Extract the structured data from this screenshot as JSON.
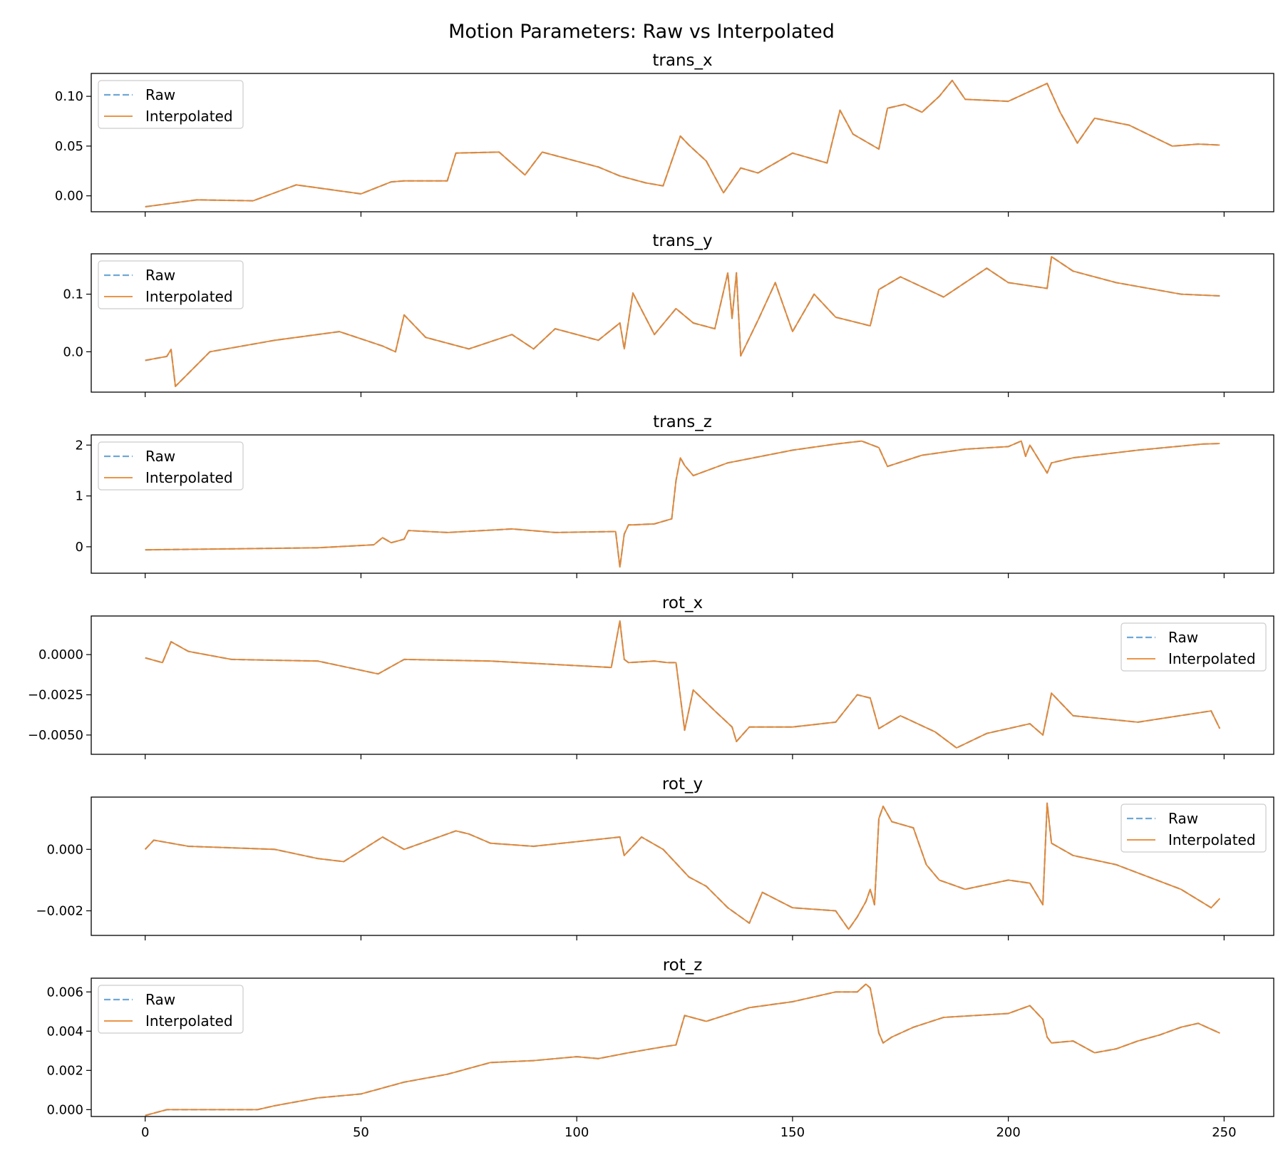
{
  "chart_data": {
    "type": "line",
    "title": "Motion Parameters: Raw vs Interpolated",
    "xlim": [
      -12.5,
      261.5
    ],
    "x_ticks": [
      0,
      50,
      100,
      150,
      200,
      250
    ],
    "x_tick_labels": [
      "0",
      "50",
      "100",
      "150",
      "200",
      "250"
    ],
    "x_tick_labels_on_last_panel_only": true,
    "legend_entries": [
      "Raw",
      "Interpolated"
    ],
    "colors": {
      "Raw": "#6fa8d6",
      "Interpolated": "#e8862f"
    },
    "raw_line_style": "dashed",
    "grid": false,
    "panels": [
      {
        "title": "trans_x",
        "ylim": [
          -0.016,
          0.123
        ],
        "y_ticks": [
          0,
          0.05,
          0.1
        ],
        "y_tick_labels": [
          "0.00",
          "0.05",
          "0.10"
        ],
        "legend_position": "upper-left",
        "x": [
          0,
          12,
          25,
          35,
          50,
          57,
          60,
          70,
          72,
          82,
          88,
          92,
          105,
          110,
          116,
          120,
          124,
          126,
          130,
          134,
          138,
          142,
          150,
          158,
          161,
          164,
          170,
          172,
          176,
          180,
          184,
          187,
          190,
          200,
          209,
          212,
          216,
          220,
          228,
          238,
          244,
          249
        ],
        "series": [
          {
            "name": "Raw",
            "values": [
              -0.011,
              -0.004,
              -0.005,
              0.011,
              0.002,
              0.014,
              0.015,
              0.015,
              0.043,
              0.044,
              0.021,
              0.044,
              0.029,
              0.02,
              0.013,
              0.01,
              0.06,
              0.051,
              0.035,
              0.003,
              0.028,
              0.023,
              0.043,
              0.033,
              0.086,
              0.062,
              0.047,
              0.088,
              0.092,
              0.084,
              0.1,
              0.116,
              0.097,
              0.095,
              0.113,
              0.084,
              0.053,
              0.078,
              0.071,
              0.05,
              0.052,
              0.051
            ]
          },
          {
            "name": "Interpolated",
            "values": [
              -0.011,
              -0.004,
              -0.005,
              0.011,
              0.002,
              0.014,
              0.015,
              0.015,
              0.043,
              0.044,
              0.021,
              0.044,
              0.029,
              0.02,
              0.013,
              0.01,
              0.06,
              0.051,
              0.035,
              0.003,
              0.028,
              0.023,
              0.043,
              0.033,
              0.086,
              0.062,
              0.047,
              0.088,
              0.092,
              0.084,
              0.1,
              0.116,
              0.097,
              0.095,
              0.113,
              0.084,
              0.053,
              0.078,
              0.071,
              0.05,
              0.052,
              0.051
            ]
          }
        ]
      },
      {
        "title": "trans_y",
        "ylim": [
          -0.07,
          0.17
        ],
        "y_ticks": [
          0,
          0.1
        ],
        "y_tick_labels": [
          "0.0",
          "0.1"
        ],
        "legend_position": "upper-left",
        "x": [
          0,
          5,
          6,
          7,
          15,
          30,
          45,
          55,
          58,
          60,
          65,
          75,
          85,
          90,
          95,
          105,
          110,
          111,
          113,
          118,
          123,
          127,
          132,
          135,
          136,
          137,
          138,
          142,
          146,
          150,
          155,
          160,
          168,
          170,
          175,
          185,
          195,
          200,
          209,
          210,
          215,
          225,
          240,
          249
        ],
        "series": [
          {
            "name": "Raw",
            "values": [
              -0.015,
              -0.008,
              0.004,
              -0.06,
              0.0,
              0.02,
              0.035,
              0.01,
              0.0,
              0.064,
              0.025,
              0.005,
              0.03,
              0.005,
              0.04,
              0.02,
              0.05,
              0.005,
              0.102,
              0.03,
              0.075,
              0.05,
              0.04,
              0.137,
              0.058,
              0.137,
              -0.007,
              0.055,
              0.12,
              0.035,
              0.1,
              0.06,
              0.045,
              0.108,
              0.13,
              0.095,
              0.145,
              0.12,
              0.11,
              0.165,
              0.14,
              0.12,
              0.1,
              0.097
            ]
          },
          {
            "name": "Interpolated",
            "values": [
              -0.015,
              -0.008,
              0.004,
              -0.06,
              0.0,
              0.02,
              0.035,
              0.01,
              0.0,
              0.064,
              0.025,
              0.005,
              0.03,
              0.005,
              0.04,
              0.02,
              0.05,
              0.005,
              0.102,
              0.03,
              0.075,
              0.05,
              0.04,
              0.137,
              0.058,
              0.137,
              -0.007,
              0.055,
              0.12,
              0.035,
              0.1,
              0.06,
              0.045,
              0.108,
              0.13,
              0.095,
              0.145,
              0.12,
              0.11,
              0.165,
              0.14,
              0.12,
              0.1,
              0.097
            ]
          }
        ]
      },
      {
        "title": "trans_z",
        "ylim": [
          -0.52,
          2.2
        ],
        "y_ticks": [
          0,
          1,
          2
        ],
        "y_tick_labels": [
          "0",
          "1",
          "2"
        ],
        "legend_position": "upper-left",
        "x": [
          0,
          20,
          40,
          53,
          55,
          57,
          60,
          61,
          70,
          85,
          95,
          109,
          110,
          111,
          112,
          113,
          118,
          122,
          123,
          124,
          125,
          127,
          135,
          150,
          160,
          166,
          170,
          172,
          180,
          190,
          200,
          203,
          204,
          205,
          209,
          210,
          215,
          230,
          245,
          249
        ],
        "series": [
          {
            "name": "Raw",
            "values": [
              -0.06,
              -0.04,
              -0.02,
              0.04,
              0.18,
              0.08,
              0.15,
              0.32,
              0.28,
              0.35,
              0.28,
              0.3,
              -0.4,
              0.25,
              0.43,
              0.43,
              0.45,
              0.55,
              1.3,
              1.75,
              1.6,
              1.4,
              1.65,
              1.9,
              2.02,
              2.08,
              1.95,
              1.58,
              1.8,
              1.92,
              1.97,
              2.08,
              1.78,
              2.0,
              1.45,
              1.65,
              1.75,
              1.9,
              2.02,
              2.03
            ]
          },
          {
            "name": "Interpolated",
            "values": [
              -0.06,
              -0.04,
              -0.02,
              0.04,
              0.18,
              0.08,
              0.15,
              0.32,
              0.28,
              0.35,
              0.28,
              0.3,
              -0.4,
              0.25,
              0.43,
              0.43,
              0.45,
              0.55,
              1.3,
              1.75,
              1.6,
              1.4,
              1.65,
              1.9,
              2.02,
              2.08,
              1.95,
              1.58,
              1.8,
              1.92,
              1.97,
              2.08,
              1.78,
              2.0,
              1.45,
              1.65,
              1.75,
              1.9,
              2.02,
              2.03
            ]
          }
        ]
      },
      {
        "title": "rot_x",
        "ylim": [
          -0.0062,
          0.0024
        ],
        "y_ticks": [
          -0.005,
          -0.0025,
          0
        ],
        "y_tick_labels": [
          "−0.0050",
          "−0.0025",
          "0.0000"
        ],
        "legend_position": "upper-right",
        "x": [
          0,
          4,
          6,
          10,
          20,
          40,
          54,
          60,
          80,
          108,
          110,
          111,
          112,
          118,
          121,
          123,
          125,
          127,
          132,
          136,
          137,
          140,
          150,
          160,
          165,
          168,
          170,
          175,
          183,
          188,
          195,
          205,
          208,
          210,
          215,
          230,
          247,
          249
        ],
        "series": [
          {
            "name": "Raw",
            "values": [
              -0.0002,
              -0.0005,
              0.0008,
              0.0002,
              -0.0003,
              -0.0004,
              -0.0012,
              -0.0003,
              -0.0004,
              -0.0008,
              0.0021,
              -0.0003,
              -0.0005,
              -0.0004,
              -0.0005,
              -0.0005,
              -0.0047,
              -0.0022,
              -0.0035,
              -0.0045,
              -0.0054,
              -0.0045,
              -0.0045,
              -0.0042,
              -0.0025,
              -0.0027,
              -0.0046,
              -0.0038,
              -0.0048,
              -0.0058,
              -0.0049,
              -0.0043,
              -0.005,
              -0.0024,
              -0.0038,
              -0.0042,
              -0.0035,
              -0.0046
            ]
          },
          {
            "name": "Interpolated",
            "values": [
              -0.0002,
              -0.0005,
              0.0008,
              0.0002,
              -0.0003,
              -0.0004,
              -0.0012,
              -0.0003,
              -0.0004,
              -0.0008,
              0.0021,
              -0.0003,
              -0.0005,
              -0.0004,
              -0.0005,
              -0.0005,
              -0.0047,
              -0.0022,
              -0.0035,
              -0.0045,
              -0.0054,
              -0.0045,
              -0.0045,
              -0.0042,
              -0.0025,
              -0.0027,
              -0.0046,
              -0.0038,
              -0.0048,
              -0.0058,
              -0.0049,
              -0.0043,
              -0.005,
              -0.0024,
              -0.0038,
              -0.0042,
              -0.0035,
              -0.0046
            ]
          }
        ]
      },
      {
        "title": "rot_y",
        "ylim": [
          -0.0028,
          0.0017
        ],
        "y_ticks": [
          -0.002,
          0
        ],
        "y_tick_labels": [
          "−0.002",
          "0.000"
        ],
        "legend_position": "upper-right",
        "x": [
          0,
          2,
          10,
          30,
          40,
          46,
          55,
          60,
          72,
          75,
          80,
          90,
          110,
          111,
          115,
          120,
          126,
          130,
          135,
          140,
          143,
          150,
          160,
          163,
          165,
          167,
          168,
          169,
          170,
          171,
          173,
          178,
          181,
          184,
          190,
          200,
          205,
          208,
          209,
          210,
          215,
          225,
          240,
          247,
          249
        ],
        "series": [
          {
            "name": "Raw",
            "values": [
              0.0,
              0.0003,
              0.0001,
              0.0,
              -0.0003,
              -0.0004,
              0.0004,
              0.0,
              0.0006,
              0.0005,
              0.0002,
              0.0001,
              0.0004,
              -0.0002,
              0.0004,
              0.0,
              -0.0009,
              -0.0012,
              -0.0019,
              -0.0024,
              -0.0014,
              -0.0019,
              -0.002,
              -0.0026,
              -0.0022,
              -0.0017,
              -0.0013,
              -0.0018,
              0.001,
              0.0014,
              0.0009,
              0.0007,
              -0.0005,
              -0.001,
              -0.0013,
              -0.001,
              -0.0011,
              -0.0018,
              0.0015,
              0.0002,
              -0.0002,
              -0.0005,
              -0.0013,
              -0.0019,
              -0.0016
            ]
          },
          {
            "name": "Interpolated",
            "values": [
              0.0,
              0.0003,
              0.0001,
              0.0,
              -0.0003,
              -0.0004,
              0.0004,
              0.0,
              0.0006,
              0.0005,
              0.0002,
              0.0001,
              0.0004,
              -0.0002,
              0.0004,
              0.0,
              -0.0009,
              -0.0012,
              -0.0019,
              -0.0024,
              -0.0014,
              -0.0019,
              -0.002,
              -0.0026,
              -0.0022,
              -0.0017,
              -0.0013,
              -0.0018,
              0.001,
              0.0014,
              0.0009,
              0.0007,
              -0.0005,
              -0.001,
              -0.0013,
              -0.001,
              -0.0011,
              -0.0018,
              0.0015,
              0.0002,
              -0.0002,
              -0.0005,
              -0.0013,
              -0.0019,
              -0.0016
            ]
          }
        ]
      },
      {
        "title": "rot_z",
        "ylim": [
          -0.00035,
          0.0067
        ],
        "y_ticks": [
          0,
          0.002,
          0.004,
          0.006
        ],
        "y_tick_labels": [
          "0.000",
          "0.002",
          "0.004",
          "0.006"
        ],
        "legend_position": "upper-left",
        "x": [
          0,
          5,
          10,
          26,
          30,
          40,
          50,
          60,
          70,
          80,
          90,
          100,
          105,
          112,
          120,
          123,
          125,
          130,
          140,
          150,
          160,
          165,
          167,
          168,
          169,
          170,
          171,
          173,
          178,
          185,
          200,
          205,
          208,
          209,
          210,
          215,
          220,
          225,
          230,
          235,
          240,
          244,
          249
        ],
        "series": [
          {
            "name": "Raw",
            "values": [
              -0.0003,
              0.0,
              0.0,
              0.0,
              0.0002,
              0.0006,
              0.0008,
              0.0014,
              0.0018,
              0.0024,
              0.0025,
              0.0027,
              0.0026,
              0.0029,
              0.0032,
              0.0033,
              0.0048,
              0.0045,
              0.0052,
              0.0055,
              0.006,
              0.006,
              0.0064,
              0.0062,
              0.0051,
              0.0039,
              0.0034,
              0.0037,
              0.0042,
              0.0047,
              0.0049,
              0.0053,
              0.0046,
              0.0037,
              0.0034,
              0.0035,
              0.0029,
              0.0031,
              0.0035,
              0.0038,
              0.0042,
              0.0044,
              0.0039
            ]
          },
          {
            "name": "Interpolated",
            "values": [
              -0.0003,
              0.0,
              0.0,
              0.0,
              0.0002,
              0.0006,
              0.0008,
              0.0014,
              0.0018,
              0.0024,
              0.0025,
              0.0027,
              0.0026,
              0.0029,
              0.0032,
              0.0033,
              0.0048,
              0.0045,
              0.0052,
              0.0055,
              0.006,
              0.006,
              0.0064,
              0.0062,
              0.0051,
              0.0039,
              0.0034,
              0.0037,
              0.0042,
              0.0047,
              0.0049,
              0.0053,
              0.0046,
              0.0037,
              0.0034,
              0.0035,
              0.0029,
              0.0031,
              0.0035,
              0.0038,
              0.0042,
              0.0044,
              0.0039
            ]
          }
        ]
      }
    ]
  }
}
